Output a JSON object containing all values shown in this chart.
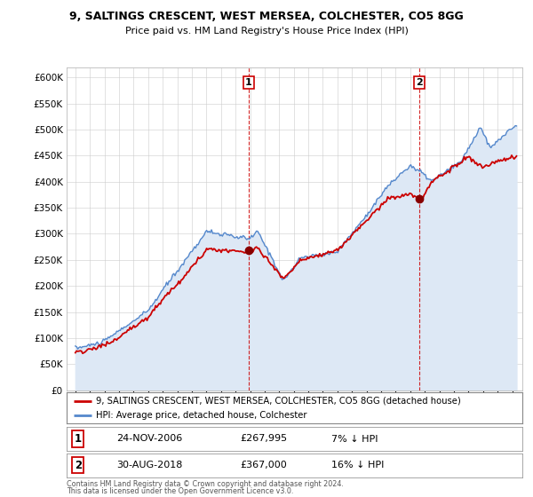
{
  "title1": "9, SALTINGS CRESCENT, WEST MERSEA, COLCHESTER, CO5 8GG",
  "title2": "Price paid vs. HM Land Registry's House Price Index (HPI)",
  "legend_line1": "9, SALTINGS CRESCENT, WEST MERSEA, COLCHESTER, CO5 8GG (detached house)",
  "legend_line2": "HPI: Average price, detached house, Colchester",
  "transaction1_date": "24-NOV-2006",
  "transaction1_price": "£267,995",
  "transaction1_note": "7% ↓ HPI",
  "transaction2_date": "30-AUG-2018",
  "transaction2_price": "£367,000",
  "transaction2_note": "16% ↓ HPI",
  "footer1": "Contains HM Land Registry data © Crown copyright and database right 2024.",
  "footer2": "This data is licensed under the Open Government Licence v3.0.",
  "hpi_color": "#5588cc",
  "hpi_fill_color": "#dde8f5",
  "price_color": "#cc0000",
  "marker_color": "#880000",
  "vline_color": "#cc0000",
  "background_color": "#ffffff",
  "plot_bg_color": "#ffffff",
  "grid_color": "#cccccc",
  "ylim_min": 0,
  "ylim_max": 620000,
  "t1_year": 2006.9,
  "t2_year": 2018.625,
  "p1_price": 267995,
  "p2_price": 367000
}
